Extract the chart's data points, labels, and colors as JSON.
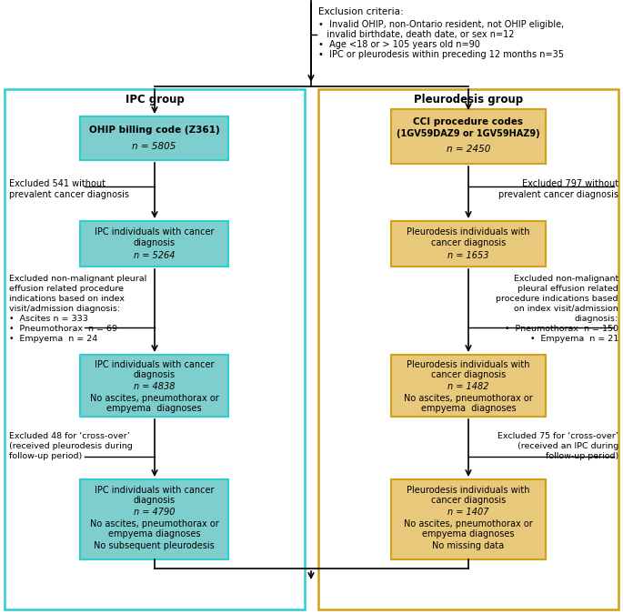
{
  "fig_width": 6.85,
  "fig_height": 6.75,
  "bg_color": "#ffffff",
  "ipc_border_color": "#2ECECE",
  "pleurodesis_border_color": "#D4A017",
  "ipc_box_fill": "#7ECECE",
  "pleurodesis_box_fill": "#E8C87A",
  "excl_top_text_line1": "Exclusion criteria:",
  "excl_top_bullet1": "•  Invalid OHIP, non-Ontario resident, not OHIP eligible,",
  "excl_top_bullet1b": "   invalid birthdate, death date, or sex n=12",
  "excl_top_bullet2": "•  Age <18 or > 105 years old n=90",
  "excl_top_bullet3": "•  IPC or pleurodesis within preceding 12 months n=35",
  "ipc_group_label": "IPC group",
  "pleurodesis_group_label": "Pleurodesis group"
}
